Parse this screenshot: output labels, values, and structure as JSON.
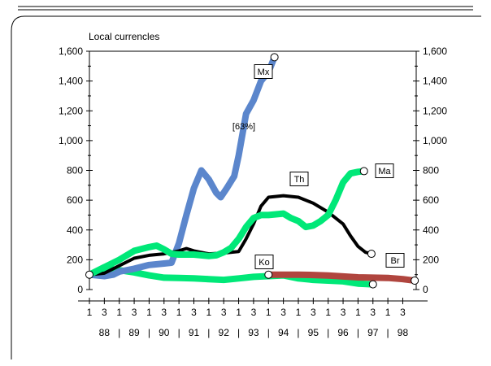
{
  "chart_data": {
    "type": "line",
    "ylabel": "Local currencles",
    "ylim": [
      0,
      1600
    ],
    "yticks": [
      "0",
      "200",
      "400",
      "600",
      "800",
      "1,000",
      "1,200",
      "1,400",
      "1,600"
    ],
    "ytick_values": [
      0,
      200,
      400,
      600,
      800,
      1000,
      1200,
      1400,
      1600
    ],
    "quarter_labels": [
      "1",
      "3",
      "1",
      "3",
      "1",
      "3",
      "1",
      "3",
      "1",
      "3",
      "1",
      "3",
      "1",
      "3",
      "1",
      "3",
      "1",
      "3",
      "1",
      "3",
      "1",
      "3"
    ],
    "years": [
      "88",
      "89",
      "90",
      "91",
      "92",
      "93",
      "94",
      "95",
      "96",
      "97",
      "98"
    ],
    "x_start": 1988.0,
    "x_end": 1998.95,
    "annotation": "[63%]",
    "series": [
      {
        "name": "Mx",
        "color": "#5b86cc",
        "points": [
          [
            1988.0,
            100
          ],
          [
            1988.5,
            90
          ],
          [
            1988.8,
            100
          ],
          [
            1989.0,
            120
          ],
          [
            1989.5,
            140
          ],
          [
            1990.0,
            165
          ],
          [
            1990.5,
            175
          ],
          [
            1990.75,
            180
          ],
          [
            1991.0,
            310
          ],
          [
            1991.25,
            500
          ],
          [
            1991.5,
            680
          ],
          [
            1991.75,
            800
          ],
          [
            1992.0,
            740
          ],
          [
            1992.25,
            650
          ],
          [
            1992.4,
            620
          ],
          [
            1992.6,
            680
          ],
          [
            1992.85,
            760
          ],
          [
            1993.0,
            900
          ],
          [
            1993.25,
            1180
          ],
          [
            1993.5,
            1270
          ],
          [
            1993.75,
            1400
          ],
          [
            1994.0,
            1460
          ],
          [
            1994.2,
            1560
          ]
        ],
        "end_marker": true
      },
      {
        "name": "Th",
        "color": "#000000",
        "points": [
          [
            1988.0,
            100
          ],
          [
            1988.5,
            110
          ],
          [
            1989.0,
            160
          ],
          [
            1989.5,
            210
          ],
          [
            1990.0,
            230
          ],
          [
            1990.5,
            240
          ],
          [
            1991.0,
            260
          ],
          [
            1991.25,
            275
          ],
          [
            1991.5,
            260
          ],
          [
            1992.0,
            240
          ],
          [
            1992.5,
            245
          ],
          [
            1993.0,
            255
          ],
          [
            1993.25,
            340
          ],
          [
            1993.5,
            440
          ],
          [
            1993.75,
            560
          ],
          [
            1994.0,
            620
          ],
          [
            1994.5,
            630
          ],
          [
            1995.0,
            620
          ],
          [
            1995.5,
            580
          ],
          [
            1996.0,
            520
          ],
          [
            1996.5,
            440
          ],
          [
            1996.75,
            360
          ],
          [
            1997.0,
            290
          ],
          [
            1997.25,
            250
          ],
          [
            1997.45,
            240
          ]
        ],
        "end_marker": true
      },
      {
        "name": "Ma",
        "color": "#00e878",
        "points": [
          [
            1988.0,
            100
          ],
          [
            1988.5,
            150
          ],
          [
            1989.0,
            200
          ],
          [
            1989.5,
            260
          ],
          [
            1990.0,
            285
          ],
          [
            1990.25,
            295
          ],
          [
            1990.5,
            270
          ],
          [
            1990.75,
            240
          ],
          [
            1991.0,
            235
          ],
          [
            1991.5,
            235
          ],
          [
            1992.0,
            225
          ],
          [
            1992.25,
            230
          ],
          [
            1992.5,
            250
          ],
          [
            1992.75,
            280
          ],
          [
            1993.0,
            340
          ],
          [
            1993.25,
            420
          ],
          [
            1993.5,
            480
          ],
          [
            1993.75,
            500
          ],
          [
            1994.0,
            500
          ],
          [
            1994.5,
            510
          ],
          [
            1994.75,
            480
          ],
          [
            1995.0,
            460
          ],
          [
            1995.25,
            420
          ],
          [
            1995.5,
            430
          ],
          [
            1995.75,
            460
          ],
          [
            1996.0,
            500
          ],
          [
            1996.25,
            600
          ],
          [
            1996.5,
            720
          ],
          [
            1996.75,
            780
          ],
          [
            1997.0,
            790
          ],
          [
            1997.2,
            795
          ]
        ],
        "end_marker": true
      },
      {
        "name": "Ko",
        "color": "#00e878",
        "points": [
          [
            1988.0,
            100
          ],
          [
            1988.5,
            140
          ],
          [
            1989.0,
            130
          ],
          [
            1989.5,
            115
          ],
          [
            1990.0,
            95
          ],
          [
            1990.5,
            80
          ],
          [
            1991.0,
            78
          ],
          [
            1991.5,
            75
          ],
          [
            1992.0,
            70
          ],
          [
            1992.5,
            65
          ],
          [
            1993.0,
            75
          ],
          [
            1993.5,
            85
          ],
          [
            1994.0,
            90
          ],
          [
            1994.5,
            95
          ],
          [
            1995.0,
            75
          ],
          [
            1995.5,
            65
          ],
          [
            1996.0,
            60
          ],
          [
            1996.5,
            55
          ],
          [
            1997.0,
            40
          ],
          [
            1997.5,
            35
          ]
        ],
        "end_marker": true
      },
      {
        "name": "Br",
        "color": "#b0453e",
        "points": [
          [
            1994.0,
            100
          ],
          [
            1994.5,
            100
          ],
          [
            1995.0,
            100
          ],
          [
            1995.5,
            98
          ],
          [
            1996.0,
            94
          ],
          [
            1996.5,
            88
          ],
          [
            1997.0,
            82
          ],
          [
            1997.5,
            80
          ],
          [
            1998.0,
            78
          ],
          [
            1998.5,
            70
          ],
          [
            1998.9,
            60
          ]
        ],
        "end_marker": true
      }
    ]
  }
}
